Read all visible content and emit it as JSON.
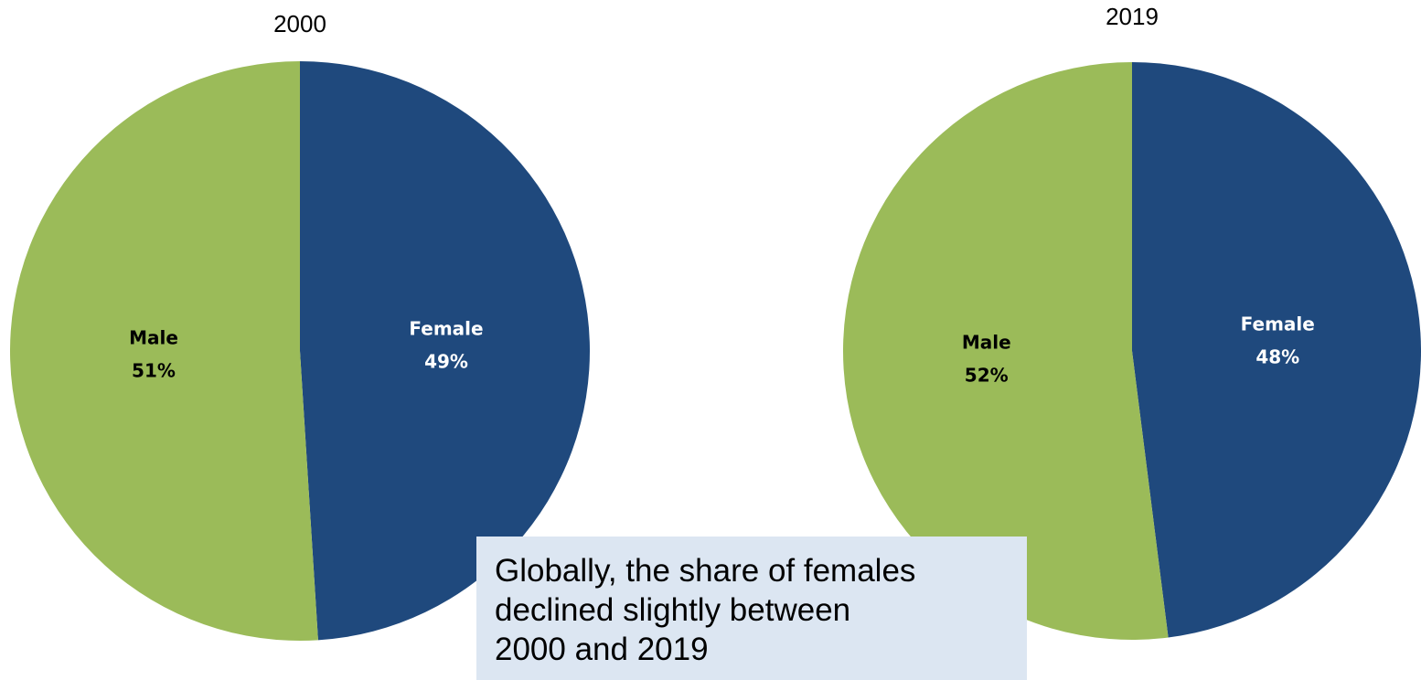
{
  "chart_data": [
    {
      "type": "pie",
      "title": "2000",
      "categories": [
        "Female",
        "Male"
      ],
      "values": [
        49,
        51
      ],
      "value_labels": [
        "49%",
        "51%"
      ],
      "colors": [
        "#1f497d",
        "#9bbb59"
      ],
      "label_colors": [
        "#ffffff",
        "#000000"
      ]
    },
    {
      "type": "pie",
      "title": "2019",
      "categories": [
        "Female",
        "Male"
      ],
      "values": [
        48,
        52
      ],
      "value_labels": [
        "48%",
        "52%"
      ],
      "colors": [
        "#1f497d",
        "#9bbb59"
      ],
      "label_colors": [
        "#ffffff",
        "#000000"
      ]
    }
  ],
  "annotation": [
    "Globally, the share of females",
    "declined slightly between",
    "2000 and 2019"
  ]
}
